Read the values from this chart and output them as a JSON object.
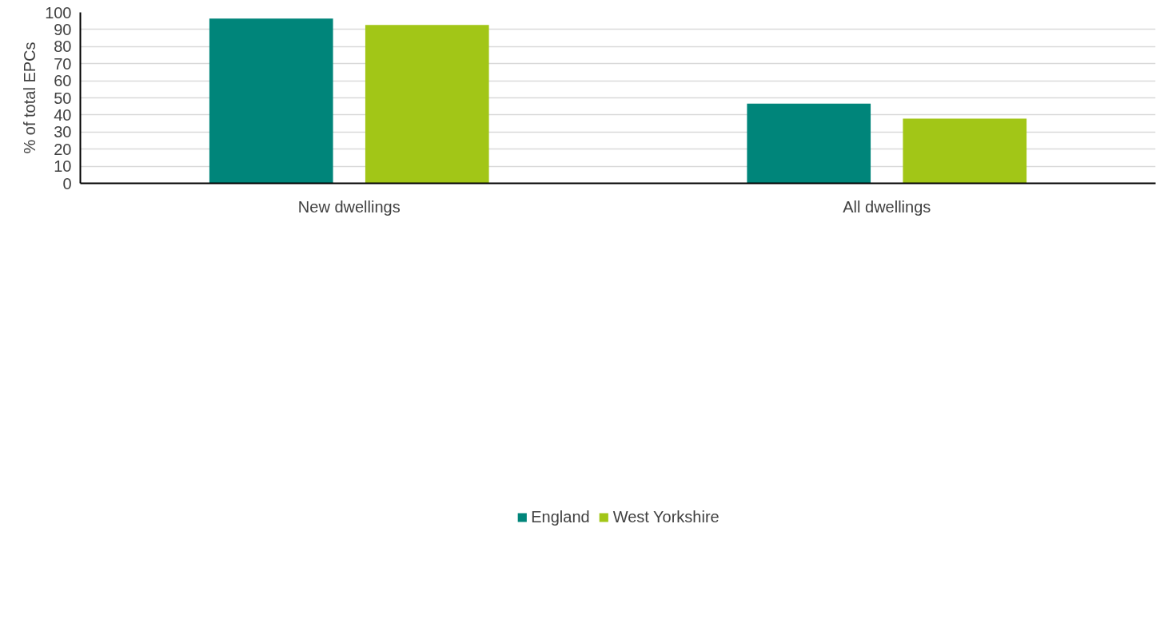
{
  "chart_data": {
    "type": "bar",
    "ylabel": "% of total EPCs",
    "categories": [
      "New dwellings",
      "All dwellings"
    ],
    "series": [
      {
        "name": "England",
        "color": "#00857a",
        "values": [
          96.4,
          46.6
        ]
      },
      {
        "name": "West Yorkshire",
        "color": "#a2c617",
        "values": [
          92.6,
          37.9
        ]
      }
    ],
    "ylim": [
      0,
      100
    ],
    "yticks": [
      0,
      10,
      20,
      30,
      40,
      50,
      60,
      70,
      80,
      90,
      100
    ],
    "grid": "y",
    "legend": "bottom"
  }
}
